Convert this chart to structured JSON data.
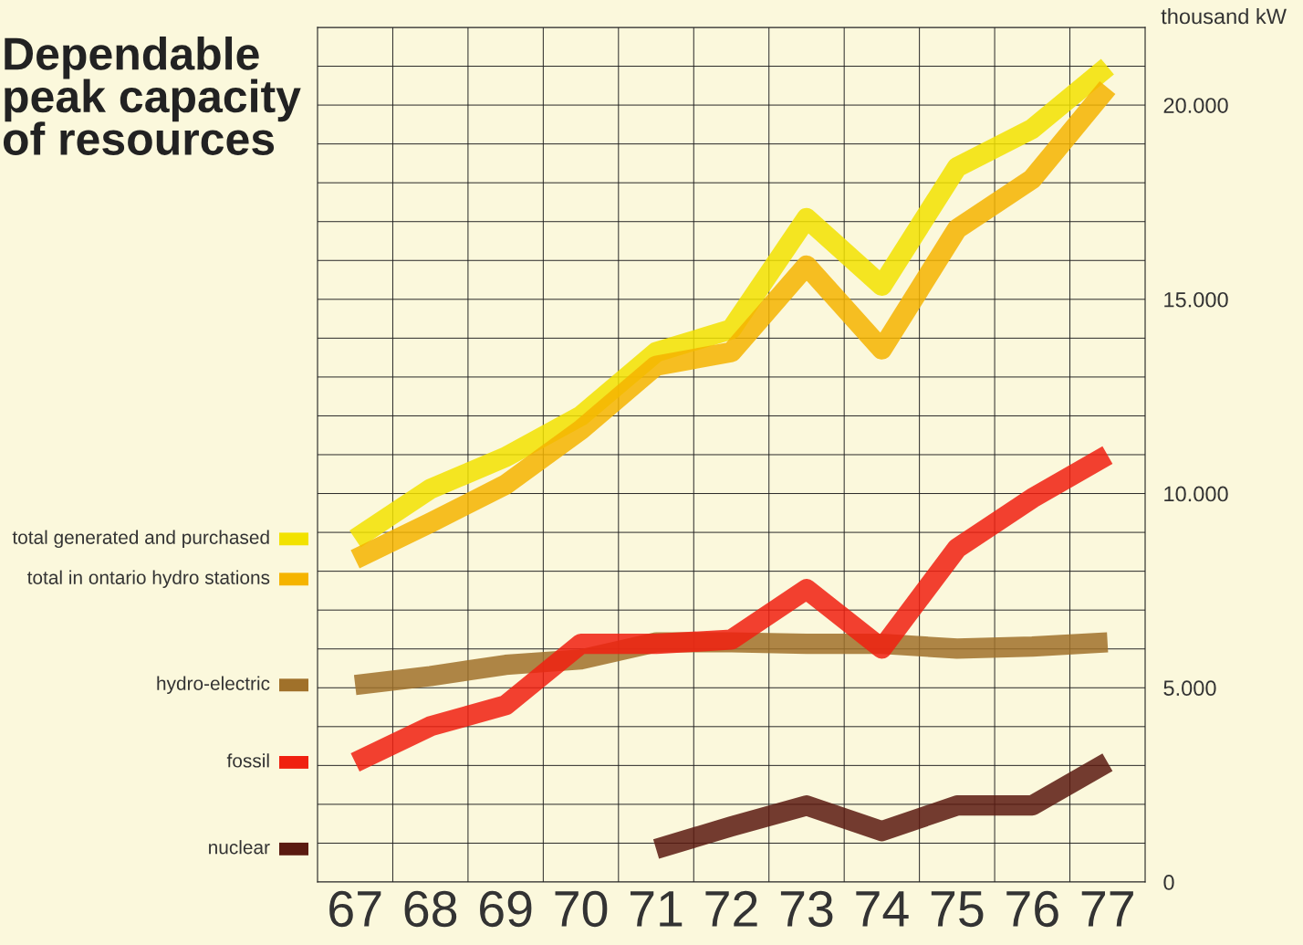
{
  "chart_data": {
    "type": "line",
    "title": "Dependable\npeak capacity\nof resources",
    "ylabel": "thousand kW",
    "categories": [
      "67",
      "68",
      "69",
      "70",
      "71",
      "72",
      "73",
      "74",
      "75",
      "76",
      "77"
    ],
    "series": [
      {
        "name": "total generated and purchased",
        "color": "#f2e200",
        "values": [
          8830,
          10120,
          10940,
          12000,
          13640,
          14230,
          17090,
          15350,
          18400,
          19390,
          20990
        ]
      },
      {
        "name": "total in ontario hydro stations",
        "color": "#f5b400",
        "values": [
          8310,
          9250,
          10230,
          11640,
          13290,
          13640,
          15870,
          13710,
          16810,
          18100,
          20450
        ]
      },
      {
        "name": "hydro-electric",
        "color": "#a0712a",
        "values": [
          5070,
          5300,
          5590,
          5730,
          6170,
          6170,
          6130,
          6130,
          6010,
          6060,
          6170
        ]
      },
      {
        "name": "fossil",
        "color": "#f02010",
        "values": [
          3080,
          4010,
          4550,
          6130,
          6130,
          6240,
          7540,
          6010,
          8590,
          9880,
          10990
        ]
      },
      {
        "name": "nuclear",
        "color": "#5a1a10",
        "values": [
          null,
          null,
          null,
          null,
          850,
          1430,
          1970,
          1310,
          1970,
          1970,
          3080
        ]
      }
    ],
    "ylim": [
      0,
      22000
    ],
    "yticks": [
      {
        "value": 0,
        "label": "0"
      },
      {
        "value": 1000,
        "label": null
      },
      {
        "value": 2000,
        "label": null
      },
      {
        "value": 3000,
        "label": null
      },
      {
        "value": 4000,
        "label": null
      },
      {
        "value": 5000,
        "label": "5.000"
      },
      {
        "value": 6000,
        "label": null
      },
      {
        "value": 7000,
        "label": null
      },
      {
        "value": 8000,
        "label": null
      },
      {
        "value": 9000,
        "label": null
      },
      {
        "value": 10000,
        "label": "10.000"
      },
      {
        "value": 11000,
        "label": null
      },
      {
        "value": 12000,
        "label": null
      },
      {
        "value": 13000,
        "label": null
      },
      {
        "value": 14000,
        "label": null
      },
      {
        "value": 15000,
        "label": "15.000"
      },
      {
        "value": 16000,
        "label": null
      },
      {
        "value": 17000,
        "label": null
      },
      {
        "value": 18000,
        "label": null
      },
      {
        "value": 19000,
        "label": null
      },
      {
        "value": 20000,
        "label": "20.000"
      },
      {
        "value": 21000,
        "label": null
      },
      {
        "value": 22000,
        "label": null
      }
    ],
    "grid": true,
    "legend": "left",
    "marker": "none",
    "line_style": "solid"
  }
}
